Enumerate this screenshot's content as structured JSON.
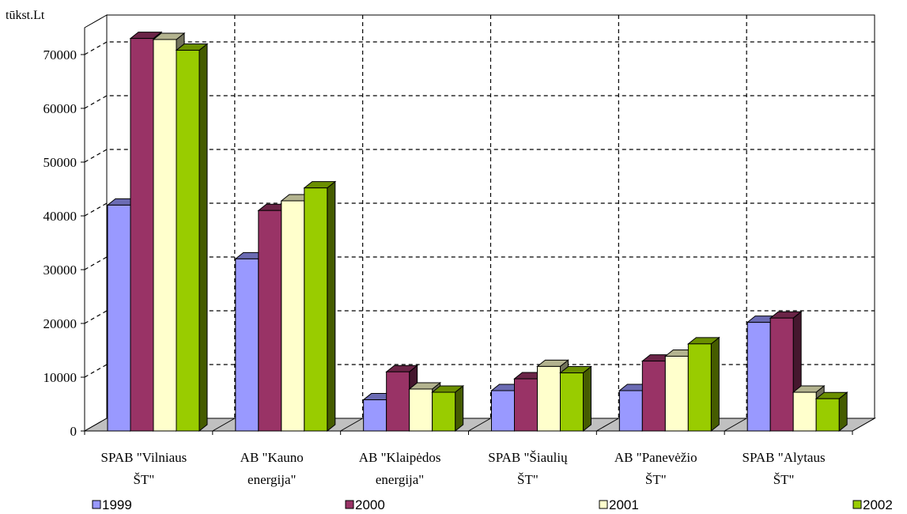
{
  "chart_data": {
    "type": "bar",
    "ylabel": "tūkst.Lt",
    "ylim": [
      0,
      75000
    ],
    "yticks": [
      0,
      10000,
      20000,
      30000,
      40000,
      50000,
      60000,
      70000
    ],
    "categories": [
      [
        "SPAB \"Vilniaus",
        "ŠT\""
      ],
      [
        "AB \"Kauno",
        "energija\""
      ],
      [
        "AB \"Klaipėdos",
        "energija\""
      ],
      [
        "SPAB \"Šiaulių",
        "ŠT\""
      ],
      [
        "AB \"Panevėžio",
        "ŠT\""
      ],
      [
        "SPAB \"Alytaus",
        "ŠT\""
      ]
    ],
    "series": [
      {
        "name": "1999",
        "color": "#9999ff",
        "values": [
          42000,
          32000,
          5800,
          7500,
          7500,
          20200
        ]
      },
      {
        "name": "2000",
        "color": "#993366",
        "values": [
          73000,
          41000,
          11000,
          9700,
          13000,
          21000
        ]
      },
      {
        "name": "2001",
        "color": "#ffffcc",
        "values": [
          72800,
          42800,
          7800,
          12000,
          13900,
          7200
        ]
      },
      {
        "name": "2002",
        "color": "#99cc00",
        "values": [
          70800,
          45200,
          7200,
          10800,
          16200,
          6000
        ]
      }
    ],
    "grid": "dashed",
    "legend_position": "bottom",
    "style": "3d-clustered-column"
  }
}
